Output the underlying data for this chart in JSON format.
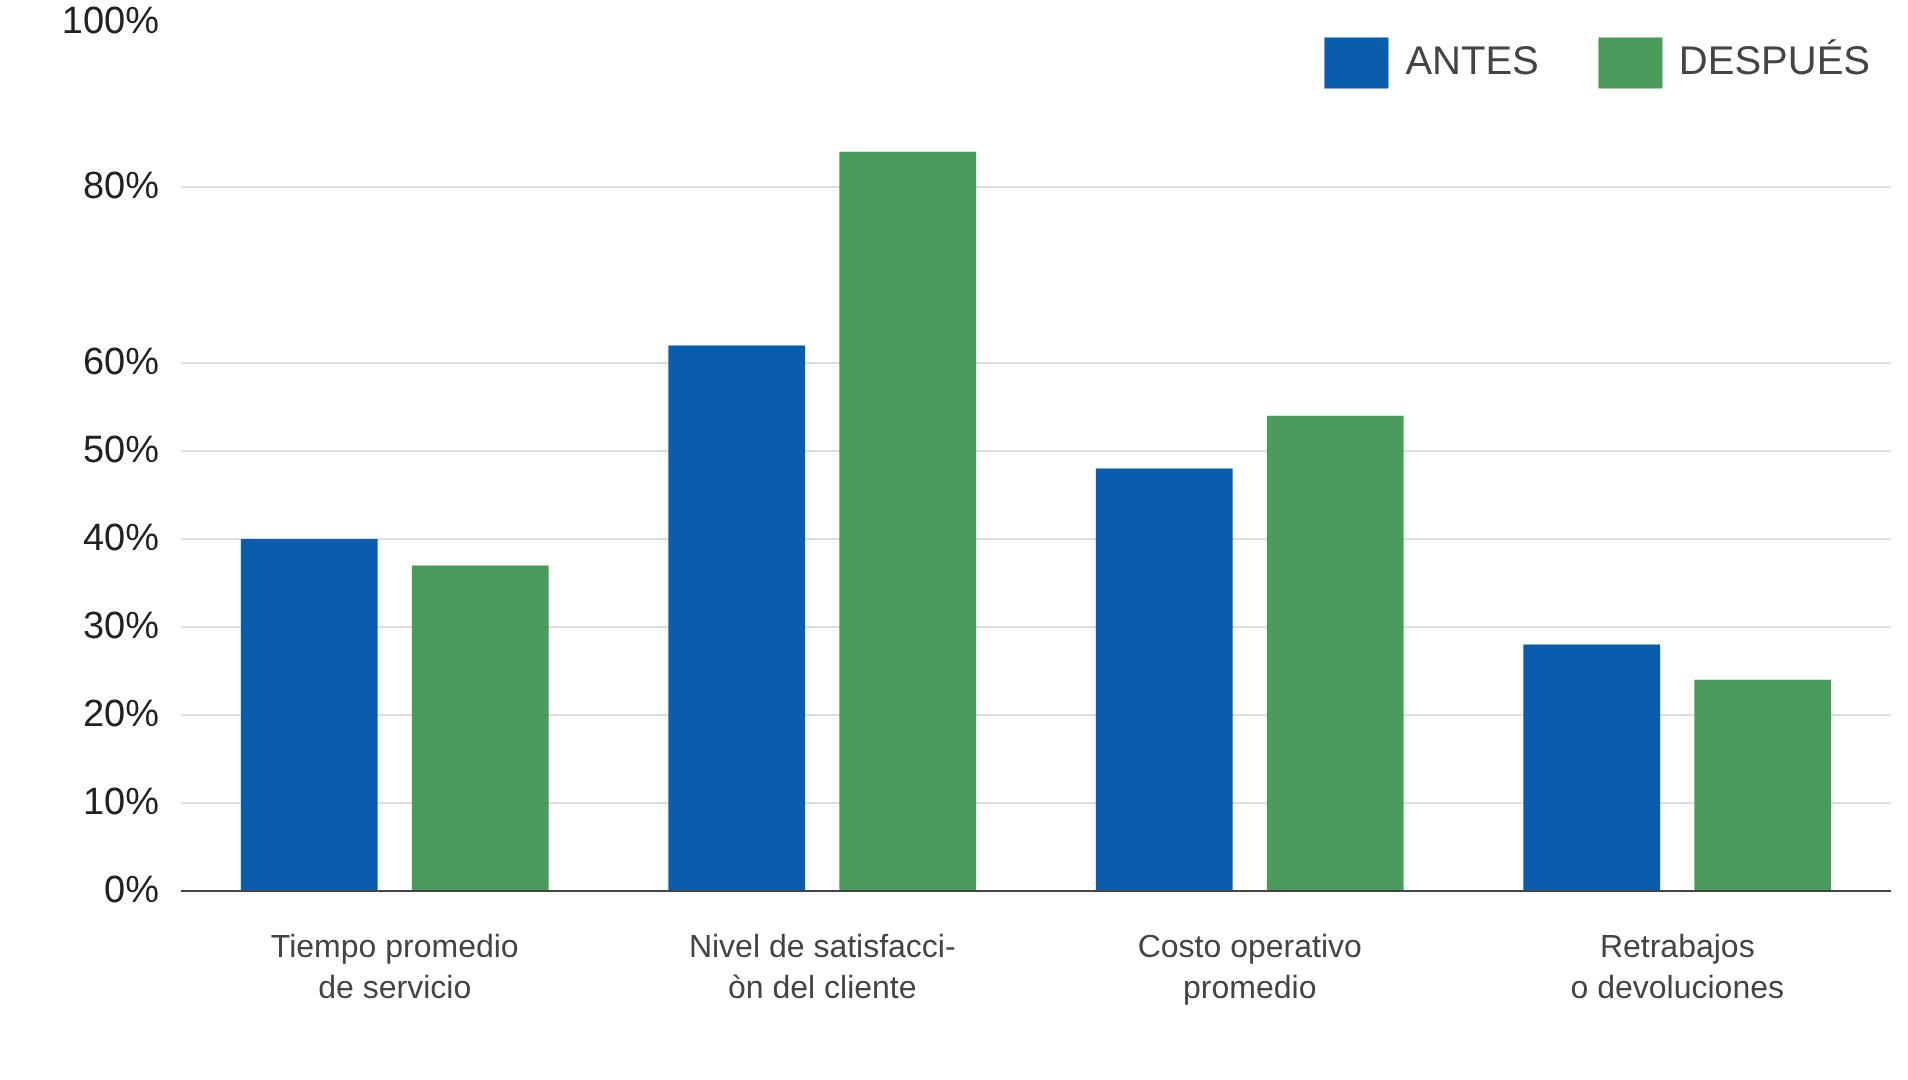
{
  "chart_data": {
    "type": "bar",
    "categories": [
      "Tiempo promedio\nde servicio",
      "Nivel de satisfacci-\nòn del cliente",
      "Costo operativo\npromedio",
      "Retrabajos\no devoluciones"
    ],
    "series": [
      {
        "name": "ANTES",
        "color": "#0a5cad",
        "values": [
          40,
          62,
          48,
          28
        ]
      },
      {
        "name": "DESPUÉS",
        "color": "#4a9a5c",
        "values": [
          37,
          84,
          54,
          24
        ]
      }
    ],
    "ylim": [
      0,
      100
    ],
    "yticks": [
      {
        "value": 0,
        "label": "0%"
      },
      {
        "value": 10,
        "label": "10%"
      },
      {
        "value": 20,
        "label": "20%"
      },
      {
        "value": 30,
        "label": "30%"
      },
      {
        "value": 40,
        "label": "40%"
      },
      {
        "value": 50,
        "label": "50%"
      },
      {
        "value": 60,
        "label": "60%"
      },
      {
        "value": 80,
        "label": "80%"
      },
      {
        "value": 100,
        "label": "100%"
      }
    ],
    "grid": "y",
    "legend": "top right"
  }
}
